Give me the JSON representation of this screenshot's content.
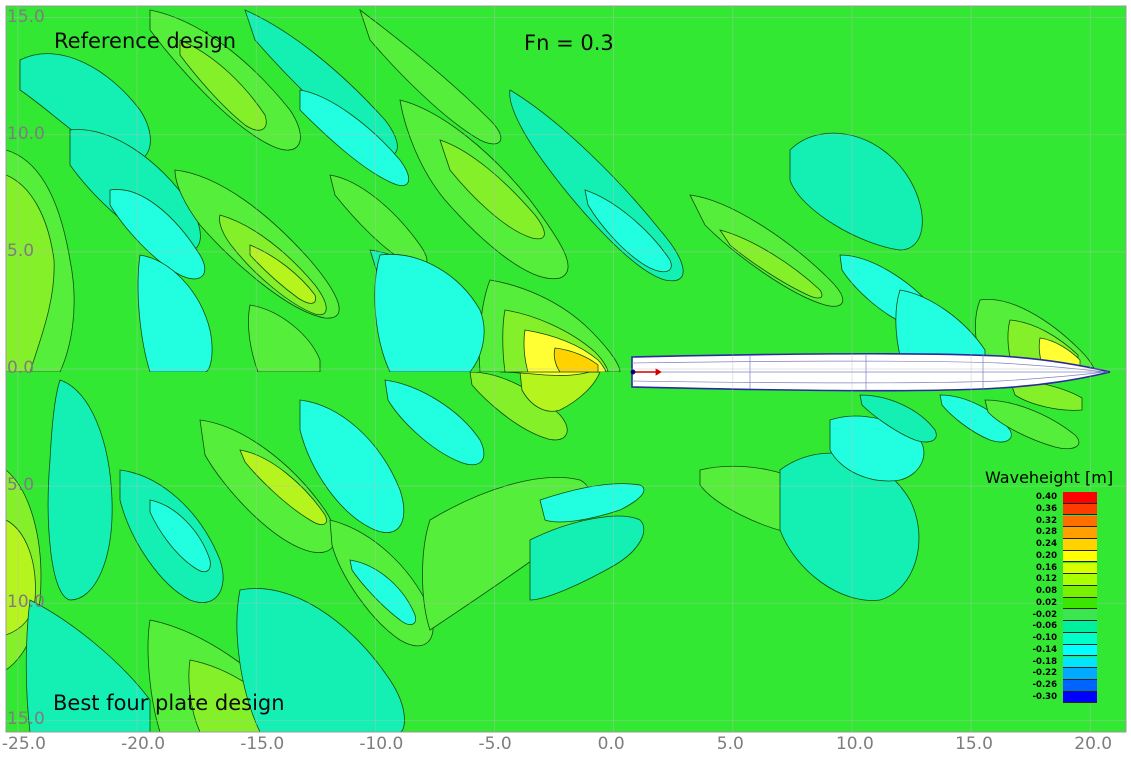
{
  "labels": {
    "top_left": "Reference design",
    "top_center": "Fn = 0.3",
    "bottom_left": "Best four plate design"
  },
  "axes": {
    "x_ticks": [
      "-25.0",
      "-20.0",
      "-15.0",
      "-10.0",
      "-5.0",
      "0.0",
      "5.0",
      "10.0",
      "15.0",
      "20.0"
    ],
    "y_ticks": [
      "15.0",
      "10.0",
      "5.0",
      "0.0",
      "5.0",
      "10.0",
      "15.0"
    ],
    "x_range": [
      -25.5,
      21.5
    ],
    "y_range": [
      15.5,
      -15.5
    ]
  },
  "legend": {
    "title": "Waveheight [m]",
    "levels": [
      {
        "value": "0.40",
        "color": "#ff0000"
      },
      {
        "value": "0.36",
        "color": "#ff3c00"
      },
      {
        "value": "0.32",
        "color": "#ff6e00"
      },
      {
        "value": "0.28",
        "color": "#ffa000"
      },
      {
        "value": "0.24",
        "color": "#ffd200"
      },
      {
        "value": "0.20",
        "color": "#ffff00"
      },
      {
        "value": "0.16",
        "color": "#d8ff00"
      },
      {
        "value": "0.12",
        "color": "#aaff00"
      },
      {
        "value": "0.08",
        "color": "#78f000"
      },
      {
        "value": "0.02",
        "color": "#3ce600"
      },
      {
        "value": "-0.02",
        "color": "#3ce650"
      },
      {
        "value": "-0.06",
        "color": "#00f0a0"
      },
      {
        "value": "-0.10",
        "color": "#00ffc8"
      },
      {
        "value": "-0.14",
        "color": "#00ffff"
      },
      {
        "value": "-0.18",
        "color": "#00e6ff"
      },
      {
        "value": "-0.22",
        "color": "#00aaff"
      },
      {
        "value": "-0.26",
        "color": "#0064ff"
      },
      {
        "value": "-0.30",
        "color": "#0000ff"
      }
    ]
  },
  "colors": {
    "background_field": "#33e833",
    "grid": "#bdbdbd",
    "tick_text": "#7d7d7d",
    "hull_fill": "#ffffff",
    "hull_outline": "#2a2aa0"
  }
}
